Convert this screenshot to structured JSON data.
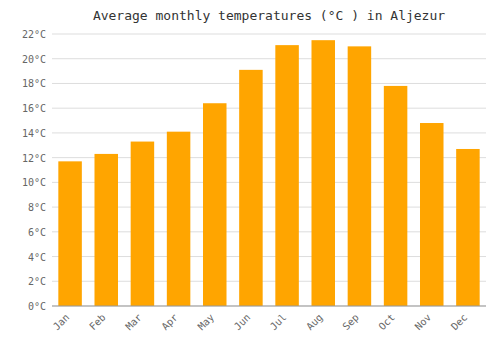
{
  "chart_data": {
    "type": "bar",
    "title": "Average monthly temperatures (°C ) in Aljezur",
    "categories": [
      "Jan",
      "Feb",
      "Mar",
      "Apr",
      "May",
      "Jun",
      "Jul",
      "Aug",
      "Sep",
      "Oct",
      "Nov",
      "Dec"
    ],
    "values": [
      11.7,
      12.3,
      13.3,
      14.1,
      16.4,
      19.1,
      21.1,
      21.5,
      21.0,
      17.8,
      14.8,
      12.7
    ],
    "color": "#FFA500",
    "ylim": [
      0,
      22
    ],
    "yticks": [
      {
        "value": 0,
        "label": "0°C"
      },
      {
        "value": 2,
        "label": "2°C"
      },
      {
        "value": 4,
        "label": "4°C"
      },
      {
        "value": 6,
        "label": "6°C"
      },
      {
        "value": 8,
        "label": "8°C"
      },
      {
        "value": 10,
        "label": "10°C"
      },
      {
        "value": 12,
        "label": "12°C"
      },
      {
        "value": 14,
        "label": "14°C"
      },
      {
        "value": 16,
        "label": "16°C"
      },
      {
        "value": 18,
        "label": "18°C"
      },
      {
        "value": 20,
        "label": "20°C"
      },
      {
        "value": 22,
        "label": "22°C"
      }
    ],
    "grid": true
  }
}
